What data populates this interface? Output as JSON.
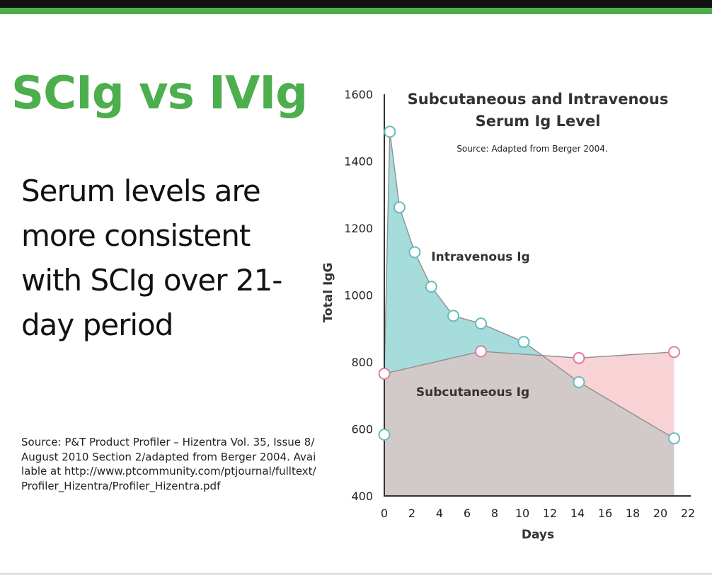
{
  "slide": {
    "title": "SCIg vs IVIg",
    "subtitle": "Serum levels are more consistent with SCIg over 21-day period",
    "source": "Source: P&T Product Profiler – Hizentra Vol. 35, Issue 8/August 2010 Section 2/adapted from Berger 2004. Available at http://www.ptcommunity.com/ptjournal/fulltext/Profiler_Hizentra/Profiler_Hizentra.pdf"
  },
  "colors": {
    "accent": "#4cae4c",
    "iv_fill": "#a6dcdc",
    "sc_fill": "#d2c9c9",
    "sc_above_fill": "#f7d3d6",
    "iv_marker": "#68bcbc",
    "sc_marker": "#e07aa3"
  },
  "chart_data": {
    "type": "area",
    "title_line1": "Subcutaneous and Intravenous",
    "title_line2": "Serum Ig Level",
    "source": "Source: Adapted from Berger 2004.",
    "xlabel": "Days",
    "ylabel": "Total IgG",
    "xlim": [
      0,
      22
    ],
    "ylim": [
      400,
      1600
    ],
    "x_ticks": [
      0,
      2,
      4,
      6,
      8,
      10,
      12,
      14,
      16,
      18,
      20,
      22
    ],
    "y_ticks": [
      400,
      600,
      800,
      1000,
      1200,
      1400,
      1600
    ],
    "series": [
      {
        "name": "Intravenous Ig",
        "x": [
          0,
          0.4,
          1.1,
          2.2,
          3.4,
          5.0,
          7.0,
          10.1,
          14.1,
          21.0
        ],
        "y": [
          583,
          1488,
          1262,
          1128,
          1025,
          938,
          915,
          860,
          740,
          572
        ]
      },
      {
        "name": "Subcutaneous Ig",
        "x": [
          0,
          7.0,
          14.1,
          21.0
        ],
        "y": [
          765,
          832,
          812,
          830
        ]
      }
    ]
  }
}
